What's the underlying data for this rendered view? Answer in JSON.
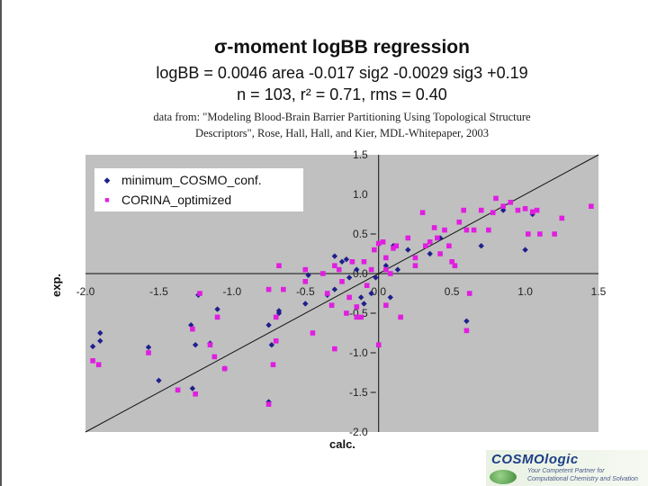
{
  "header": {
    "title": "σ-moment logBB regression",
    "equation": "logBB = 0.0046 area -0.017 sig2 -0.0029 sig3 +0.19",
    "stats": "n = 103, r² = 0.71, rms = 0.40",
    "source_line1": "data from: \"Modeling Blood-Brain Barrier Partitioning Using Topological Structure",
    "source_line2": "Descriptors\", Rose, Hall, Hall, and Kier, MDL-Whitepaper, 2003"
  },
  "logo": {
    "brand": "COSMOlogic",
    "tagline1": "Your Competent Partner for",
    "tagline2": "Computational Chemistry and Solvation"
  },
  "chart_data": {
    "type": "scatter",
    "title": "σ-moment logBB regression",
    "xlabel": "calc.",
    "ylabel": "exp.",
    "xlim": [
      -2.0,
      1.5
    ],
    "ylim": [
      -2.0,
      1.5
    ],
    "x_ticks": [
      "-2.0",
      "-1.5",
      "-1.0",
      "-0.5",
      "0.0",
      "0.5",
      "1.0",
      "1.5"
    ],
    "y_ticks": [
      "1.5",
      "1.0",
      "0.5",
      "0.0",
      "-0.5",
      "-1.0",
      "-1.5",
      "-2.0"
    ],
    "grid": false,
    "legend_position": "top-left",
    "reference_line": "y = x",
    "series": [
      {
        "name": "minimum_COSMO_conf.",
        "color": "#1f1f8c",
        "marker": "diamond",
        "points": [
          [
            -1.95,
            -0.92
          ],
          [
            -1.9,
            -0.75
          ],
          [
            -1.9,
            -0.85
          ],
          [
            -1.57,
            -0.93
          ],
          [
            -1.5,
            -1.35
          ],
          [
            -1.27,
            -1.45
          ],
          [
            -1.25,
            -0.9
          ],
          [
            -1.28,
            -0.65
          ],
          [
            -1.23,
            -0.27
          ],
          [
            -1.15,
            -0.88
          ],
          [
            -1.1,
            -0.45
          ],
          [
            -1.05,
            -1.2
          ],
          [
            -0.75,
            -1.62
          ],
          [
            -0.75,
            -0.65
          ],
          [
            -0.73,
            -0.9
          ],
          [
            -0.68,
            -0.5
          ],
          [
            -0.68,
            -0.47
          ],
          [
            -0.48,
            -0.02
          ],
          [
            -0.5,
            -0.38
          ],
          [
            -0.35,
            -0.27
          ],
          [
            -0.3,
            0.22
          ],
          [
            -0.3,
            -0.2
          ],
          [
            -0.25,
            0.15
          ],
          [
            -0.22,
            0.18
          ],
          [
            -0.2,
            -0.05
          ],
          [
            -0.15,
            0.05
          ],
          [
            -0.12,
            -0.3
          ],
          [
            -0.1,
            -0.38
          ],
          [
            -0.05,
            -0.25
          ],
          [
            -0.02,
            -0.05
          ],
          [
            0.05,
            0.1
          ],
          [
            0.08,
            -0.3
          ],
          [
            0.1,
            0.35
          ],
          [
            0.13,
            0.05
          ],
          [
            0.2,
            0.3
          ],
          [
            0.35,
            0.25
          ],
          [
            0.42,
            0.45
          ],
          [
            0.6,
            -0.6
          ],
          [
            0.7,
            0.35
          ],
          [
            0.85,
            0.8
          ],
          [
            1.0,
            0.3
          ],
          [
            1.05,
            0.75
          ]
        ]
      },
      {
        "name": "CORINA_optimized",
        "color": "#e01ee0",
        "marker": "square",
        "points": [
          [
            -1.95,
            -1.1
          ],
          [
            -1.91,
            -1.15
          ],
          [
            -1.57,
            -1.0
          ],
          [
            -1.37,
            -1.47
          ],
          [
            -1.27,
            -0.7
          ],
          [
            -1.25,
            -1.52
          ],
          [
            -1.22,
            -0.25
          ],
          [
            -1.15,
            -0.9
          ],
          [
            -1.12,
            -1.05
          ],
          [
            -1.1,
            -0.55
          ],
          [
            -1.05,
            -1.2
          ],
          [
            -0.75,
            -1.65
          ],
          [
            -0.75,
            -0.2
          ],
          [
            -0.72,
            -1.15
          ],
          [
            -0.7,
            -0.85
          ],
          [
            -0.7,
            -0.55
          ],
          [
            -0.68,
            0.1
          ],
          [
            -0.65,
            -0.2
          ],
          [
            -0.5,
            -0.1
          ],
          [
            -0.45,
            -0.75
          ],
          [
            -0.38,
            0.0
          ],
          [
            -0.35,
            -0.25
          ],
          [
            -0.32,
            -0.4
          ],
          [
            -0.3,
            0.1
          ],
          [
            -0.3,
            -0.95
          ],
          [
            -0.27,
            0.05
          ],
          [
            -0.25,
            -0.1
          ],
          [
            -0.22,
            -0.5
          ],
          [
            -0.2,
            -0.3
          ],
          [
            -0.18,
            0.15
          ],
          [
            -0.15,
            -0.42
          ],
          [
            -0.12,
            -0.55
          ],
          [
            -0.1,
            0.15
          ],
          [
            -0.08,
            -0.15
          ],
          [
            -0.05,
            0.05
          ],
          [
            -0.03,
            0.3
          ],
          [
            0.0,
            0.38
          ],
          [
            0.03,
            0.4
          ],
          [
            0.05,
            0.2
          ],
          [
            0.05,
            -0.4
          ],
          [
            0.08,
            0.0
          ],
          [
            0.1,
            0.32
          ],
          [
            0.12,
            0.35
          ],
          [
            0.15,
            -0.55
          ],
          [
            0.2,
            0.45
          ],
          [
            0.25,
            0.2
          ],
          [
            0.25,
            0.1
          ],
          [
            0.3,
            0.77
          ],
          [
            0.32,
            0.35
          ],
          [
            0.35,
            0.4
          ],
          [
            0.38,
            0.58
          ],
          [
            0.4,
            0.45
          ],
          [
            0.42,
            0.25
          ],
          [
            0.45,
            0.55
          ],
          [
            0.48,
            0.35
          ],
          [
            0.5,
            0.15
          ],
          [
            0.52,
            0.1
          ],
          [
            0.55,
            0.65
          ],
          [
            0.58,
            0.8
          ],
          [
            0.6,
            0.55
          ],
          [
            0.62,
            -0.25
          ],
          [
            0.65,
            0.55
          ],
          [
            0.7,
            0.8
          ],
          [
            0.75,
            0.55
          ],
          [
            0.78,
            0.77
          ],
          [
            0.8,
            0.95
          ],
          [
            0.85,
            0.85
          ],
          [
            0.9,
            0.9
          ],
          [
            0.95,
            0.8
          ],
          [
            1.0,
            0.82
          ],
          [
            1.02,
            0.5
          ],
          [
            1.05,
            0.78
          ],
          [
            1.08,
            0.8
          ],
          [
            1.1,
            0.5
          ],
          [
            1.2,
            0.5
          ],
          [
            1.25,
            0.7
          ],
          [
            1.45,
            0.85
          ],
          [
            0.6,
            -0.72
          ],
          [
            0.0,
            -0.9
          ],
          [
            -0.5,
            0.05
          ],
          [
            -0.15,
            -0.55
          ],
          [
            0.05,
            0.05
          ]
        ]
      }
    ]
  }
}
